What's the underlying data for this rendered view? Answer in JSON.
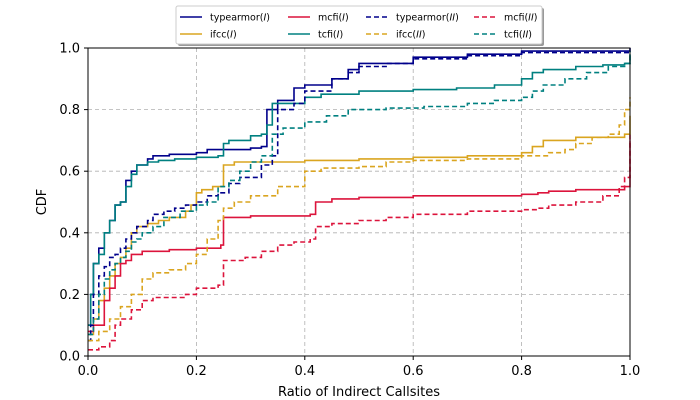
{
  "chart_data": {
    "type": "line",
    "title": "",
    "xlabel": "Ratio of Indirect Callsites",
    "ylabel": "CDF",
    "xlim": [
      0,
      1
    ],
    "ylim": [
      0,
      1
    ],
    "xticks": [
      "0.0",
      "0.2",
      "0.4",
      "0.6",
      "0.8",
      "1.0"
    ],
    "yticks": [
      "0.0",
      "0.2",
      "0.4",
      "0.6",
      "0.8",
      "1.0"
    ],
    "grid": true,
    "legend_position": "top-center",
    "series": [
      {
        "name": "typearmor",
        "suffix": "I",
        "color": "#00008b",
        "dash": "solid",
        "points": [
          [
            0,
            0.1
          ],
          [
            0.005,
            0.2
          ],
          [
            0.01,
            0.3
          ],
          [
            0.02,
            0.35
          ],
          [
            0.03,
            0.4
          ],
          [
            0.04,
            0.44
          ],
          [
            0.05,
            0.49
          ],
          [
            0.06,
            0.5
          ],
          [
            0.07,
            0.57
          ],
          [
            0.08,
            0.6
          ],
          [
            0.09,
            0.62
          ],
          [
            0.1,
            0.62
          ],
          [
            0.11,
            0.64
          ],
          [
            0.12,
            0.65
          ],
          [
            0.15,
            0.655
          ],
          [
            0.2,
            0.66
          ],
          [
            0.22,
            0.67
          ],
          [
            0.3,
            0.675
          ],
          [
            0.32,
            0.68
          ],
          [
            0.33,
            0.8
          ],
          [
            0.35,
            0.83
          ],
          [
            0.38,
            0.87
          ],
          [
            0.4,
            0.88
          ],
          [
            0.45,
            0.9
          ],
          [
            0.48,
            0.93
          ],
          [
            0.5,
            0.95
          ],
          [
            0.6,
            0.97
          ],
          [
            0.7,
            0.98
          ],
          [
            0.8,
            0.99
          ],
          [
            1.0,
            1.0
          ]
        ]
      },
      {
        "name": "ifcc",
        "suffix": "I",
        "color": "#daa520",
        "dash": "solid",
        "points": [
          [
            0,
            0.07
          ],
          [
            0.01,
            0.12
          ],
          [
            0.02,
            0.18
          ],
          [
            0.03,
            0.22
          ],
          [
            0.04,
            0.26
          ],
          [
            0.05,
            0.3
          ],
          [
            0.06,
            0.32
          ],
          [
            0.07,
            0.35
          ],
          [
            0.08,
            0.4
          ],
          [
            0.09,
            0.42
          ],
          [
            0.11,
            0.43
          ],
          [
            0.13,
            0.44
          ],
          [
            0.15,
            0.45
          ],
          [
            0.18,
            0.47
          ],
          [
            0.19,
            0.49
          ],
          [
            0.2,
            0.53
          ],
          [
            0.21,
            0.54
          ],
          [
            0.23,
            0.55
          ],
          [
            0.25,
            0.62
          ],
          [
            0.27,
            0.63
          ],
          [
            0.4,
            0.635
          ],
          [
            0.5,
            0.64
          ],
          [
            0.6,
            0.645
          ],
          [
            0.7,
            0.65
          ],
          [
            0.8,
            0.66
          ],
          [
            0.82,
            0.68
          ],
          [
            0.84,
            0.7
          ],
          [
            0.9,
            0.71
          ],
          [
            0.99,
            0.72
          ],
          [
            1.0,
            0.78
          ]
        ]
      },
      {
        "name": "mcfi",
        "suffix": "I",
        "color": "#dc143c",
        "dash": "solid",
        "points": [
          [
            0,
            0.08
          ],
          [
            0.01,
            0.1
          ],
          [
            0.03,
            0.18
          ],
          [
            0.04,
            0.22
          ],
          [
            0.05,
            0.26
          ],
          [
            0.06,
            0.3
          ],
          [
            0.07,
            0.31
          ],
          [
            0.08,
            0.33
          ],
          [
            0.1,
            0.34
          ],
          [
            0.15,
            0.345
          ],
          [
            0.2,
            0.35
          ],
          [
            0.245,
            0.36
          ],
          [
            0.25,
            0.45
          ],
          [
            0.3,
            0.455
          ],
          [
            0.41,
            0.46
          ],
          [
            0.42,
            0.5
          ],
          [
            0.45,
            0.51
          ],
          [
            0.5,
            0.515
          ],
          [
            0.6,
            0.52
          ],
          [
            0.7,
            0.52
          ],
          [
            0.8,
            0.525
          ],
          [
            0.83,
            0.53
          ],
          [
            0.85,
            0.535
          ],
          [
            0.9,
            0.54
          ],
          [
            0.99,
            0.55
          ],
          [
            1.0,
            0.7
          ]
        ]
      },
      {
        "name": "tcfi",
        "suffix": "I",
        "color": "#008080",
        "dash": "solid",
        "points": [
          [
            0,
            0.1
          ],
          [
            0.005,
            0.2
          ],
          [
            0.01,
            0.3
          ],
          [
            0.02,
            0.33
          ],
          [
            0.03,
            0.4
          ],
          [
            0.04,
            0.44
          ],
          [
            0.05,
            0.49
          ],
          [
            0.06,
            0.5
          ],
          [
            0.07,
            0.55
          ],
          [
            0.08,
            0.59
          ],
          [
            0.09,
            0.62
          ],
          [
            0.11,
            0.63
          ],
          [
            0.13,
            0.635
          ],
          [
            0.16,
            0.64
          ],
          [
            0.2,
            0.645
          ],
          [
            0.24,
            0.65
          ],
          [
            0.25,
            0.69
          ],
          [
            0.26,
            0.7
          ],
          [
            0.3,
            0.715
          ],
          [
            0.32,
            0.72
          ],
          [
            0.33,
            0.75
          ],
          [
            0.34,
            0.82
          ],
          [
            0.4,
            0.84
          ],
          [
            0.43,
            0.85
          ],
          [
            0.5,
            0.86
          ],
          [
            0.6,
            0.865
          ],
          [
            0.68,
            0.87
          ],
          [
            0.75,
            0.88
          ],
          [
            0.8,
            0.9
          ],
          [
            0.82,
            0.92
          ],
          [
            0.84,
            0.93
          ],
          [
            0.9,
            0.94
          ],
          [
            0.95,
            0.945
          ],
          [
            0.99,
            0.95
          ],
          [
            1.0,
            0.98
          ]
        ]
      },
      {
        "name": "typearmor",
        "suffix": "II",
        "color": "#00008b",
        "dash": "dashed",
        "points": [
          [
            0,
            0.05
          ],
          [
            0.005,
            0.1
          ],
          [
            0.01,
            0.2
          ],
          [
            0.02,
            0.26
          ],
          [
            0.03,
            0.29
          ],
          [
            0.04,
            0.32
          ],
          [
            0.05,
            0.33
          ],
          [
            0.06,
            0.35
          ],
          [
            0.07,
            0.38
          ],
          [
            0.08,
            0.4
          ],
          [
            0.09,
            0.42
          ],
          [
            0.11,
            0.44
          ],
          [
            0.12,
            0.46
          ],
          [
            0.14,
            0.47
          ],
          [
            0.16,
            0.48
          ],
          [
            0.18,
            0.49
          ],
          [
            0.2,
            0.5
          ],
          [
            0.22,
            0.52
          ],
          [
            0.24,
            0.53
          ],
          [
            0.26,
            0.56
          ],
          [
            0.28,
            0.58
          ],
          [
            0.32,
            0.62
          ],
          [
            0.34,
            0.65
          ],
          [
            0.35,
            0.8
          ],
          [
            0.38,
            0.82
          ],
          [
            0.4,
            0.86
          ],
          [
            0.45,
            0.9
          ],
          [
            0.48,
            0.92
          ],
          [
            0.5,
            0.94
          ],
          [
            0.55,
            0.95
          ],
          [
            0.6,
            0.965
          ],
          [
            0.7,
            0.975
          ],
          [
            0.8,
            0.985
          ],
          [
            1.0,
            0.99
          ]
        ]
      },
      {
        "name": "ifcc",
        "suffix": "II",
        "color": "#daa520",
        "dash": "dashed",
        "points": [
          [
            0,
            0.05
          ],
          [
            0.02,
            0.08
          ],
          [
            0.04,
            0.12
          ],
          [
            0.06,
            0.16
          ],
          [
            0.08,
            0.2
          ],
          [
            0.1,
            0.25
          ],
          [
            0.12,
            0.27
          ],
          [
            0.15,
            0.28
          ],
          [
            0.18,
            0.3
          ],
          [
            0.2,
            0.33
          ],
          [
            0.22,
            0.38
          ],
          [
            0.24,
            0.44
          ],
          [
            0.25,
            0.48
          ],
          [
            0.27,
            0.5
          ],
          [
            0.3,
            0.52
          ],
          [
            0.35,
            0.55
          ],
          [
            0.4,
            0.6
          ],
          [
            0.43,
            0.61
          ],
          [
            0.5,
            0.615
          ],
          [
            0.55,
            0.63
          ],
          [
            0.6,
            0.635
          ],
          [
            0.7,
            0.64
          ],
          [
            0.8,
            0.65
          ],
          [
            0.85,
            0.66
          ],
          [
            0.88,
            0.67
          ],
          [
            0.9,
            0.69
          ],
          [
            0.93,
            0.71
          ],
          [
            0.96,
            0.72
          ],
          [
            0.98,
            0.75
          ],
          [
            0.99,
            0.8
          ],
          [
            1.0,
            0.84
          ]
        ]
      },
      {
        "name": "mcfi",
        "suffix": "II",
        "color": "#dc143c",
        "dash": "dashed",
        "points": [
          [
            0,
            0.02
          ],
          [
            0.02,
            0.03
          ],
          [
            0.04,
            0.05
          ],
          [
            0.05,
            0.1
          ],
          [
            0.06,
            0.12
          ],
          [
            0.08,
            0.15
          ],
          [
            0.1,
            0.18
          ],
          [
            0.12,
            0.19
          ],
          [
            0.18,
            0.2
          ],
          [
            0.2,
            0.22
          ],
          [
            0.24,
            0.23
          ],
          [
            0.25,
            0.31
          ],
          [
            0.29,
            0.32
          ],
          [
            0.32,
            0.34
          ],
          [
            0.35,
            0.36
          ],
          [
            0.38,
            0.37
          ],
          [
            0.41,
            0.38
          ],
          [
            0.42,
            0.42
          ],
          [
            0.45,
            0.43
          ],
          [
            0.5,
            0.44
          ],
          [
            0.55,
            0.45
          ],
          [
            0.6,
            0.46
          ],
          [
            0.7,
            0.47
          ],
          [
            0.8,
            0.475
          ],
          [
            0.83,
            0.48
          ],
          [
            0.85,
            0.49
          ],
          [
            0.9,
            0.5
          ],
          [
            0.95,
            0.52
          ],
          [
            0.98,
            0.55
          ],
          [
            0.99,
            0.58
          ],
          [
            1.0,
            0.72
          ]
        ]
      },
      {
        "name": "tcfi",
        "suffix": "II",
        "color": "#008080",
        "dash": "dashed",
        "points": [
          [
            0,
            0.07
          ],
          [
            0.01,
            0.12
          ],
          [
            0.02,
            0.2
          ],
          [
            0.03,
            0.25
          ],
          [
            0.04,
            0.28
          ],
          [
            0.05,
            0.3
          ],
          [
            0.06,
            0.32
          ],
          [
            0.07,
            0.34
          ],
          [
            0.08,
            0.37
          ],
          [
            0.09,
            0.38
          ],
          [
            0.1,
            0.4
          ],
          [
            0.12,
            0.42
          ],
          [
            0.14,
            0.45
          ],
          [
            0.17,
            0.47
          ],
          [
            0.2,
            0.49
          ],
          [
            0.22,
            0.5
          ],
          [
            0.24,
            0.55
          ],
          [
            0.26,
            0.57
          ],
          [
            0.28,
            0.6
          ],
          [
            0.3,
            0.63
          ],
          [
            0.32,
            0.65
          ],
          [
            0.34,
            0.72
          ],
          [
            0.36,
            0.74
          ],
          [
            0.4,
            0.76
          ],
          [
            0.44,
            0.78
          ],
          [
            0.48,
            0.8
          ],
          [
            0.55,
            0.805
          ],
          [
            0.62,
            0.81
          ],
          [
            0.7,
            0.82
          ],
          [
            0.75,
            0.83
          ],
          [
            0.8,
            0.84
          ],
          [
            0.82,
            0.86
          ],
          [
            0.84,
            0.88
          ],
          [
            0.88,
            0.9
          ],
          [
            0.92,
            0.92
          ],
          [
            0.96,
            0.94
          ],
          [
            0.99,
            0.95
          ],
          [
            1.0,
            0.99
          ]
        ]
      }
    ]
  }
}
